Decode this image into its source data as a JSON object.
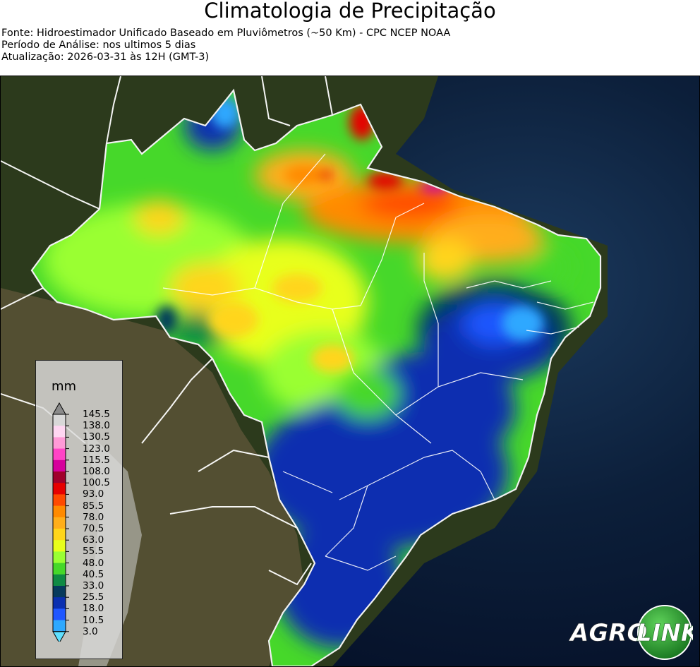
{
  "title": "Climatologia de Precipitação",
  "subtitle_lines": [
    "Fonte: Hidroestimador Unificado Baseado em Pluviômetros (~50 Km) - CPC NCEP NOAA",
    "Período de Análise: nos ultimos 5 dias",
    "Atualização: 2026-03-31 às 12H (GMT-3)"
  ],
  "legend": {
    "unit": "mm",
    "ticks": [
      "145.5",
      "138.0",
      "130.5",
      "123.0",
      "115.5",
      "108.0",
      "100.5",
      "93.0",
      "85.5",
      "78.0",
      "70.5",
      "63.0",
      "55.5",
      "48.0",
      "40.5",
      "33.0",
      "25.5",
      "18.0",
      "10.5",
      "3.0"
    ],
    "colors": [
      "#d8d8d8",
      "#ffd6f2",
      "#ff9ad7",
      "#ff44c6",
      "#d6009c",
      "#a0002c",
      "#e60000",
      "#ff4a00",
      "#ff8a00",
      "#ffae1a",
      "#ffd51a",
      "#e8ff1a",
      "#9aff33",
      "#46d82a",
      "#0f8a44",
      "#063a5c",
      "#0a2fb0",
      "#1f56ff",
      "#2da8ff",
      "#24c8f0"
    ],
    "over_color": "#8a8a8a",
    "under_color": "#5fe0ff"
  },
  "logo": {
    "text_left": "AGRO",
    "text_right": "LINK"
  }
}
